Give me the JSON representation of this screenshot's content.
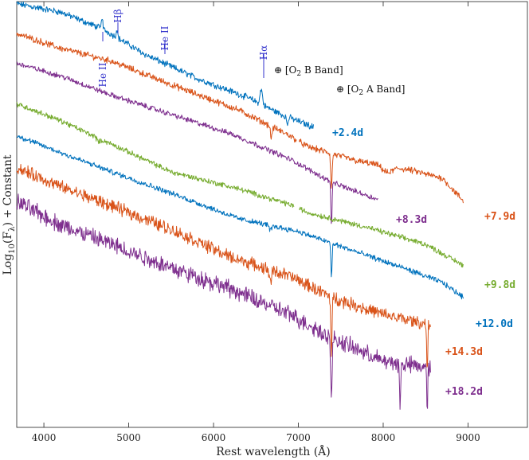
{
  "chart_data": {
    "type": "line",
    "title": "",
    "xlabel": "Rest wavelength (Å)",
    "ylabel": "Log10(Fλ) + Constant",
    "xlim": [
      3680,
      9700
    ],
    "ylim": [
      0,
      1
    ],
    "x_ticks": [
      4000,
      5000,
      6000,
      7000,
      8000,
      9000
    ],
    "x_tick_labels": [
      "4000",
      "5000",
      "6000",
      "7000",
      "8000",
      "9000"
    ],
    "grid": false,
    "series": [
      {
        "name": "+2.4d",
        "color": "#0072bd",
        "segments": [
          [
            3680,
            7180
          ]
        ],
        "anchors": [
          [
            3680,
            0.995
          ],
          [
            4200,
            0.975
          ],
          [
            4700,
            0.935
          ],
          [
            5200,
            0.875
          ],
          [
            5800,
            0.82
          ],
          [
            6400,
            0.775
          ],
          [
            6800,
            0.735
          ],
          [
            7180,
            0.705
          ]
        ],
        "noise": 0.006,
        "features": [
          [
            4686,
            0.03,
            10
          ],
          [
            4861,
            0.02,
            12
          ],
          [
            6563,
            0.035,
            20
          ],
          [
            6870,
            -0.02,
            12
          ]
        ]
      },
      {
        "name": "+7.9d",
        "color": "#d95319",
        "segments": [
          [
            3680,
            6980
          ],
          [
            7010,
            8950
          ]
        ],
        "anchors": [
          [
            3680,
            0.925
          ],
          [
            4200,
            0.89
          ],
          [
            4800,
            0.86
          ],
          [
            5500,
            0.805
          ],
          [
            6300,
            0.745
          ],
          [
            6900,
            0.685
          ],
          [
            7100,
            0.66
          ],
          [
            7700,
            0.625
          ],
          [
            8300,
            0.605
          ],
          [
            8700,
            0.585
          ],
          [
            8950,
            0.53
          ]
        ],
        "noise": 0.006,
        "features": [
          [
            6680,
            -0.025,
            15
          ],
          [
            7390,
            -0.08,
            12
          ],
          [
            8050,
            -0.015,
            80
          ]
        ]
      },
      {
        "name": "+8.3d",
        "color": "#7e2f8e",
        "segments": [
          [
            3680,
            7940
          ]
        ],
        "anchors": [
          [
            3680,
            0.855
          ],
          [
            4200,
            0.825
          ],
          [
            4800,
            0.78
          ],
          [
            5500,
            0.735
          ],
          [
            6200,
            0.69
          ],
          [
            6900,
            0.63
          ],
          [
            7400,
            0.575
          ],
          [
            7940,
            0.535
          ]
        ],
        "noise": 0.005,
        "features": [
          [
            7390,
            -0.1,
            10
          ]
        ]
      },
      {
        "name": "+9.8d",
        "color": "#77ac30",
        "segments": [
          [
            3680,
            6950
          ],
          [
            7010,
            8950
          ]
        ],
        "anchors": [
          [
            3680,
            0.76
          ],
          [
            4200,
            0.72
          ],
          [
            4800,
            0.665
          ],
          [
            5500,
            0.6
          ],
          [
            6300,
            0.56
          ],
          [
            6950,
            0.52
          ],
          [
            7100,
            0.505
          ],
          [
            7800,
            0.47
          ],
          [
            8500,
            0.43
          ],
          [
            8950,
            0.38
          ]
        ],
        "noise": 0.005,
        "features": [
          [
            4650,
            -0.008,
            30
          ]
        ]
      },
      {
        "name": "+12.0d",
        "color": "#0072bd",
        "segments": [
          [
            3680,
            8950
          ]
        ],
        "anchors": [
          [
            3680,
            0.685
          ],
          [
            4200,
            0.645
          ],
          [
            4800,
            0.6
          ],
          [
            5500,
            0.55
          ],
          [
            6300,
            0.49
          ],
          [
            7000,
            0.46
          ],
          [
            7500,
            0.425
          ],
          [
            8300,
            0.37
          ],
          [
            8700,
            0.34
          ],
          [
            8950,
            0.305
          ]
        ],
        "noise": 0.005,
        "features": [
          [
            7390,
            -0.08,
            10
          ],
          [
            6670,
            -0.012,
            20
          ]
        ]
      },
      {
        "name": "+14.3d",
        "color": "#d95319",
        "segments": [
          [
            3680,
            8560
          ]
        ],
        "anchors": [
          [
            3680,
            0.61
          ],
          [
            4200,
            0.565
          ],
          [
            4800,
            0.52
          ],
          [
            5500,
            0.465
          ],
          [
            6200,
            0.4
          ],
          [
            6900,
            0.355
          ],
          [
            7400,
            0.305
          ],
          [
            8000,
            0.265
          ],
          [
            8560,
            0.24
          ]
        ],
        "noise": 0.012,
        "features": [
          [
            6670,
            -0.025,
            20
          ],
          [
            7390,
            -0.14,
            10
          ],
          [
            8520,
            -0.12,
            8
          ]
        ]
      },
      {
        "name": "+18.2d",
        "color": "#7e2f8e",
        "segments": [
          [
            3680,
            8560
          ]
        ],
        "anchors": [
          [
            3680,
            0.53
          ],
          [
            4200,
            0.475
          ],
          [
            4800,
            0.43
          ],
          [
            5500,
            0.375
          ],
          [
            6200,
            0.325
          ],
          [
            6900,
            0.265
          ],
          [
            7400,
            0.21
          ],
          [
            8000,
            0.155
          ],
          [
            8560,
            0.14
          ]
        ],
        "noise": 0.016,
        "features": [
          [
            7390,
            -0.15,
            12
          ],
          [
            8200,
            -0.1,
            10
          ],
          [
            8520,
            -0.1,
            8
          ]
        ]
      }
    ],
    "epoch_labels": [
      {
        "text": "+2.4d",
        "color": "#0072bd"
      },
      {
        "text": "+7.9d",
        "color": "#d95319"
      },
      {
        "text": "+8.3d",
        "color": "#7e2f8e"
      },
      {
        "text": "+9.8d",
        "color": "#77ac30"
      },
      {
        "text": "+12.0d",
        "color": "#0072bd"
      },
      {
        "text": "+14.3d",
        "color": "#d95319"
      },
      {
        "text": "+18.2d",
        "color": "#7e2f8e"
      }
    ],
    "line_ids": [
      {
        "name": "He II",
        "wavelength": 4686
      },
      {
        "name": "Hβ",
        "wavelength": 4861
      },
      {
        "name": "He II",
        "wavelength": 5411
      },
      {
        "name": "Hα",
        "wavelength": 6563
      }
    ],
    "telluric": [
      {
        "name": "⊕ [O2 B Band]"
      },
      {
        "name": "⊕ [O2 A Band]"
      }
    ]
  }
}
